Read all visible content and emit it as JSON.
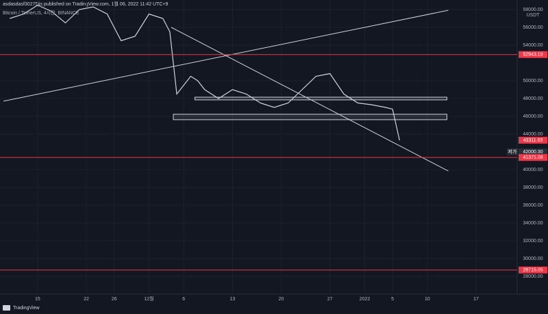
{
  "chart_data": {
    "type": "line",
    "header": "asdasdasf30275jis published on TradingView.com, 1월 06, 2022 11:42 UTC+9",
    "title": "Bitcoin / TetherUS, 4시간, BINANCE",
    "currency": "USDT",
    "brand": "TradingView",
    "x": [
      -4,
      -2,
      0,
      2,
      4,
      6,
      8,
      10,
      12,
      14,
      16,
      18,
      19,
      20,
      21,
      22,
      23,
      24,
      26,
      28,
      30,
      32,
      34,
      36,
      38,
      40,
      42,
      44,
      46,
      48,
      50,
      51,
      52
    ],
    "series": [
      {
        "name": "BTCUSDT",
        "color": "#d1d4dc",
        "values": [
          57000,
          57500,
          58500,
          57800,
          56500,
          58000,
          58300,
          57500,
          54500,
          55000,
          57500,
          57000,
          55500,
          48500,
          49500,
          50500,
          50000,
          49000,
          48000,
          49000,
          48500,
          47500,
          47000,
          47500,
          49000,
          50500,
          50800,
          48500,
          47500,
          47300,
          47000,
          46800,
          43300
        ]
      }
    ],
    "xlim": [
      -5.4,
      68.9
    ],
    "xticks": [
      {
        "value": 0,
        "label": "15"
      },
      {
        "value": 7,
        "label": "22"
      },
      {
        "value": 11,
        "label": "26"
      },
      {
        "value": 16,
        "label": "12월"
      },
      {
        "value": 21,
        "label": "6"
      },
      {
        "value": 28,
        "label": "13"
      },
      {
        "value": 35,
        "label": "20"
      },
      {
        "value": 42,
        "label": "27"
      },
      {
        "value": 47,
        "label": "2022"
      },
      {
        "value": 51,
        "label": "5"
      },
      {
        "value": 56,
        "label": "10"
      },
      {
        "value": 63,
        "label": "17"
      }
    ],
    "ylim": [
      26000,
      59077
    ],
    "yticks": [
      {
        "value": 28000,
        "label": "28000.00"
      },
      {
        "value": 30000,
        "label": "30000.00"
      },
      {
        "value": 32000,
        "label": "32000.00"
      },
      {
        "value": 34000,
        "label": "34000.00"
      },
      {
        "value": 36000,
        "label": "36000.00"
      },
      {
        "value": 38000,
        "label": "38000.00"
      },
      {
        "value": 40000,
        "label": "40000.00"
      },
      {
        "value": 44000,
        "label": "44000.00"
      },
      {
        "value": 46000,
        "label": "46000.00"
      },
      {
        "value": 48000,
        "label": "48000.00"
      },
      {
        "value": 50000,
        "label": "50000.00"
      },
      {
        "value": 54000,
        "label": "54000.00"
      },
      {
        "value": 56000,
        "label": "56000.00"
      },
      {
        "value": 58000,
        "label": "58000.00"
      }
    ],
    "grid": true,
    "levels": [
      {
        "value": 52943.19,
        "color": "#f23645",
        "line": true
      },
      {
        "value": 43311.69,
        "color": "#f23645",
        "line": false
      },
      {
        "value": 42000.3,
        "label": "42000.30",
        "color": "#2a2e39",
        "name": "저가",
        "line": false
      },
      {
        "value": 41371.08,
        "color": "#f23645",
        "line": true
      },
      {
        "value": 28715.05,
        "color": "#f23645",
        "line": true
      }
    ],
    "zones": [
      {
        "x": [
          22.6,
          58.8
        ],
        "y": [
          47850,
          48150
        ]
      },
      {
        "x": [
          19.5,
          58.8
        ],
        "y": [
          45620,
          46230
        ]
      }
    ],
    "trendlines": [
      {
        "x": [
          -4.9,
          59
        ],
        "y": [
          47700,
          57920
        ]
      },
      {
        "x": [
          19.2,
          59
        ],
        "y": [
          56000,
          39850
        ]
      }
    ]
  }
}
